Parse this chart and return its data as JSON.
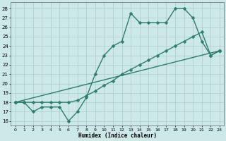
{
  "xlabel": "Humidex (Indice chaleur)",
  "bg_color": "#cce8e8",
  "grid_color": "#aacccc",
  "line_color": "#2e7d6e",
  "xlim": [
    -0.5,
    23.5
  ],
  "ylim": [
    15.5,
    28.7
  ],
  "yticks": [
    16,
    17,
    18,
    19,
    20,
    21,
    22,
    23,
    24,
    25,
    26,
    27,
    28
  ],
  "xticks": [
    0,
    1,
    2,
    3,
    4,
    5,
    6,
    7,
    8,
    9,
    10,
    11,
    12,
    13,
    14,
    15,
    16,
    17,
    18,
    19,
    20,
    21,
    22,
    23
  ],
  "series1_x": [
    0,
    1,
    2,
    3,
    4,
    5,
    6,
    7,
    8,
    9,
    10,
    11,
    12,
    13,
    14,
    15,
    16,
    17,
    18,
    19,
    20,
    21,
    22,
    23
  ],
  "series1_y": [
    18,
    18,
    17,
    17.5,
    17.5,
    17.5,
    16,
    17,
    18.5,
    21,
    23,
    24,
    24.5,
    27.5,
    26.5,
    26.5,
    26.5,
    26.5,
    28,
    28,
    27,
    24.5,
    23,
    23.5
  ],
  "series2_x": [
    0,
    1,
    2,
    3,
    4,
    5,
    6,
    7,
    8,
    9,
    10,
    11,
    12,
    13,
    14,
    15,
    16,
    17,
    18,
    19,
    20,
    21,
    22,
    23
  ],
  "series2_y": [
    18,
    18,
    18,
    18,
    18,
    18,
    18,
    18.2,
    18.7,
    19.2,
    19.8,
    20.3,
    21,
    21.5,
    22,
    22.5,
    23,
    23.5,
    24,
    24.5,
    25,
    25.5,
    23,
    23.5
  ],
  "series3_x": [
    0,
    23
  ],
  "series3_y": [
    18,
    23.5
  ],
  "marker_size": 2.5,
  "line_width": 1.0
}
